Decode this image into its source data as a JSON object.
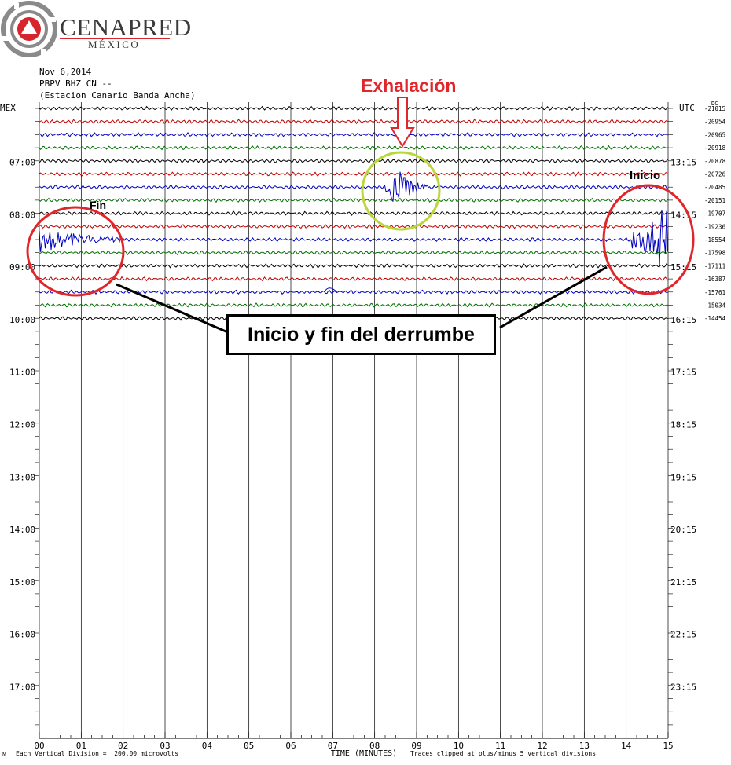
{
  "logo": {
    "brand": "CENAPRED",
    "sub": "MÉXICO",
    "colors": {
      "red": "#d6262b",
      "gray": "#8a8a8a"
    }
  },
  "header": {
    "date": "Nov 6,2014",
    "station_code": "PBPV BHZ CN --",
    "station_name": "(Estacion Canario Banda Ancha)"
  },
  "annotations": {
    "exhalacion": "Exhalación",
    "fin": "Fin",
    "inicio": "Inicio",
    "callout": "Inicio y fin del derrumbe",
    "colors": {
      "red": "#e0262a",
      "green": "#b9d63a"
    }
  },
  "footer": {
    "vertical_division": "Each Vertical Division =  200.00 microvolts",
    "clipped": "Traces clipped at plus/minus 5 vertical divisions"
  },
  "chart_data": {
    "type": "line",
    "left_axis_label": "MEX",
    "right_axis_label": "UTC",
    "right_extra_label": "DC",
    "xlabel": "TIME (MINUTES)",
    "x_ticks": [
      "00",
      "01",
      "02",
      "03",
      "04",
      "05",
      "06",
      "07",
      "08",
      "09",
      "10",
      "11",
      "12",
      "13",
      "14",
      "15"
    ],
    "x_range": [
      0,
      15
    ],
    "left_hour_labels": [
      "07:00",
      "08:00",
      "09:00",
      "10:00",
      "11:00",
      "12:00",
      "13:00",
      "14:00",
      "15:00",
      "16:00",
      "17:00"
    ],
    "right_hour_labels": [
      "13:15",
      "14:15",
      "15:15",
      "16:15",
      "17:15",
      "18:15",
      "19:15",
      "20:15",
      "21:15",
      "22:15",
      "23:15"
    ],
    "trace_colors": [
      "#000000",
      "#c00000",
      "#0000c0",
      "#007000"
    ],
    "dc_offsets": [
      "-21015",
      "-20954",
      "-20965",
      "-20918",
      "-20878",
      "-20726",
      "-20485",
      "-20151",
      "-19707",
      "-19236",
      "-18554",
      "-17598",
      "-17111",
      "-16387",
      "-15761",
      "-15034",
      "-14454"
    ],
    "events": [
      {
        "name": "Exhalación",
        "trace": 6,
        "minute_start": 8.25,
        "minute_end": 9.6
      },
      {
        "name": "Fin",
        "trace": 10,
        "minute_start": 0.0,
        "minute_end": 2.0
      },
      {
        "name": "Inicio",
        "trace": 10,
        "minute_start": 14.1,
        "minute_end": 15.0
      }
    ]
  }
}
